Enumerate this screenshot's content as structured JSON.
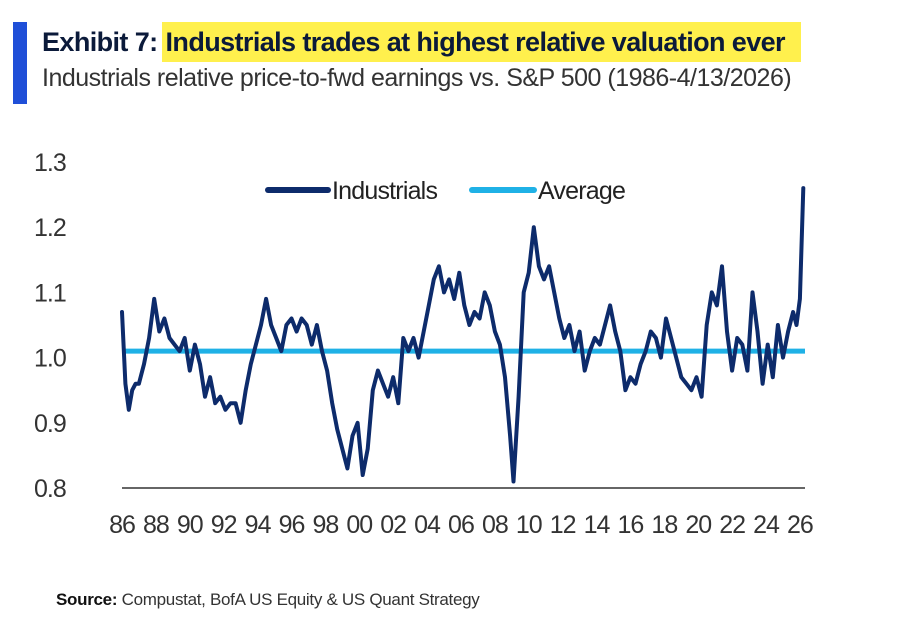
{
  "header": {
    "exhibit_label": "Exhibit 7",
    "separator": ":",
    "title": "Industrials trades at highest relative valuation ever",
    "subtitle": "Industrials relative price-to-fwd earnings vs. S&P 500 (1986-4/13/2026)"
  },
  "footer": {
    "source_label": "Source:",
    "source_text": "Compustat, BofA US Equity & US Quant Strategy"
  },
  "colors": {
    "accent": "#1f4fd8",
    "highlight": "#fff04d",
    "industrials": "#0d2b6b",
    "average": "#1fb1e6",
    "axis": "#333333"
  },
  "chart_data": {
    "type": "line",
    "title": "Industrials trades at highest relative valuation ever",
    "subtitle": "Industrials relative price-to-fwd earnings vs. S&P 500 (1986-4/13/2026)",
    "xlabel": "",
    "ylabel": "",
    "xlim": [
      1986,
      2026.3
    ],
    "ylim": [
      0.8,
      1.3
    ],
    "yticks": [
      "0.8",
      "0.9",
      "1.0",
      "1.1",
      "1.2",
      "1.3"
    ],
    "xticks": [
      "86",
      "88",
      "90",
      "92",
      "94",
      "96",
      "98",
      "00",
      "02",
      "04",
      "06",
      "08",
      "10",
      "12",
      "14",
      "16",
      "18",
      "20",
      "22",
      "24",
      "26"
    ],
    "grid": false,
    "legend": "top-center",
    "series": [
      {
        "name": "Industrials",
        "x": [
          1986.0,
          1986.2,
          1986.4,
          1986.6,
          1986.8,
          1987.0,
          1987.3,
          1987.6,
          1987.9,
          1988.2,
          1988.5,
          1988.8,
          1989.1,
          1989.4,
          1989.7,
          1990.0,
          1990.3,
          1990.6,
          1990.9,
          1991.2,
          1991.5,
          1991.8,
          1992.1,
          1992.4,
          1992.7,
          1993.0,
          1993.3,
          1993.6,
          1993.9,
          1994.2,
          1994.5,
          1994.8,
          1995.1,
          1995.4,
          1995.7,
          1996.0,
          1996.3,
          1996.6,
          1996.9,
          1997.2,
          1997.5,
          1997.8,
          1998.1,
          1998.4,
          1998.7,
          1999.0,
          1999.3,
          1999.6,
          1999.9,
          2000.2,
          2000.5,
          2000.8,
          2001.1,
          2001.4,
          2001.7,
          2002.0,
          2002.3,
          2002.6,
          2002.9,
          2003.2,
          2003.5,
          2003.8,
          2004.1,
          2004.4,
          2004.7,
          2005.0,
          2005.3,
          2005.6,
          2005.9,
          2006.2,
          2006.5,
          2006.8,
          2007.1,
          2007.4,
          2007.7,
          2008.0,
          2008.3,
          2008.6,
          2008.9,
          2009.1,
          2009.4,
          2009.7,
          2010.0,
          2010.3,
          2010.6,
          2010.9,
          2011.2,
          2011.5,
          2011.8,
          2012.1,
          2012.4,
          2012.7,
          2013.0,
          2013.3,
          2013.6,
          2013.9,
          2014.2,
          2014.5,
          2014.8,
          2015.1,
          2015.4,
          2015.7,
          2016.0,
          2016.3,
          2016.6,
          2016.9,
          2017.2,
          2017.5,
          2017.8,
          2018.1,
          2018.4,
          2018.7,
          2019.0,
          2019.3,
          2019.6,
          2019.9,
          2020.2,
          2020.5,
          2020.8,
          2021.1,
          2021.4,
          2021.7,
          2022.0,
          2022.3,
          2022.6,
          2022.9,
          2023.2,
          2023.5,
          2023.8,
          2024.1,
          2024.4,
          2024.7,
          2025.0,
          2025.3,
          2025.6,
          2025.8,
          2026.0,
          2026.2
        ],
        "values": [
          1.07,
          0.96,
          0.92,
          0.95,
          0.96,
          0.96,
          0.99,
          1.03,
          1.09,
          1.04,
          1.06,
          1.03,
          1.02,
          1.01,
          1.03,
          0.98,
          1.02,
          0.99,
          0.94,
          0.97,
          0.93,
          0.94,
          0.92,
          0.93,
          0.93,
          0.9,
          0.95,
          0.99,
          1.02,
          1.05,
          1.09,
          1.05,
          1.03,
          1.01,
          1.05,
          1.06,
          1.04,
          1.06,
          1.05,
          1.02,
          1.05,
          1.01,
          0.98,
          0.93,
          0.89,
          0.86,
          0.83,
          0.88,
          0.9,
          0.82,
          0.86,
          0.95,
          0.98,
          0.96,
          0.94,
          0.97,
          0.93,
          1.03,
          1.01,
          1.03,
          1.0,
          1.04,
          1.08,
          1.12,
          1.14,
          1.1,
          1.12,
          1.09,
          1.13,
          1.08,
          1.05,
          1.07,
          1.06,
          1.1,
          1.08,
          1.04,
          1.02,
          0.97,
          0.88,
          0.81,
          0.94,
          1.1,
          1.13,
          1.2,
          1.14,
          1.12,
          1.14,
          1.1,
          1.06,
          1.03,
          1.05,
          1.01,
          1.04,
          0.98,
          1.01,
          1.03,
          1.02,
          1.05,
          1.08,
          1.04,
          1.01,
          0.95,
          0.97,
          0.96,
          0.99,
          1.01,
          1.04,
          1.03,
          1.0,
          1.06,
          1.03,
          1.0,
          0.97,
          0.96,
          0.95,
          0.97,
          0.94,
          1.05,
          1.1,
          1.08,
          1.14,
          1.04,
          0.98,
          1.03,
          1.02,
          0.98,
          1.1,
          1.04,
          0.96,
          1.02,
          0.97,
          1.05,
          1.0,
          1.04,
          1.07,
          1.05,
          1.09,
          1.26
        ]
      },
      {
        "name": "Average",
        "x": [
          1986.0,
          2026.3
        ],
        "values": [
          1.01,
          1.01
        ]
      }
    ]
  }
}
